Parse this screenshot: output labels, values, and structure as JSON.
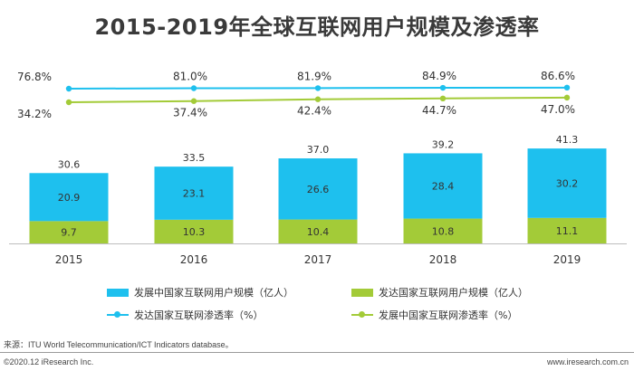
{
  "chart_data": {
    "type": "bar",
    "title": "2015-2019年全球互联网用户规模及渗透率",
    "categories": [
      "2015",
      "2016",
      "2017",
      "2018",
      "2019"
    ],
    "stack_totals": [
      "30.6",
      "33.5",
      "37.0",
      "39.2",
      "41.3"
    ],
    "series": [
      {
        "name": "发展中国家互联网用户规模（亿人）",
        "kind": "bar",
        "color": "#1ec0ee",
        "values": [
          20.9,
          23.1,
          26.6,
          28.4,
          30.2
        ],
        "labels": [
          "20.9",
          "23.1",
          "26.6",
          "28.4",
          "30.2"
        ]
      },
      {
        "name": "发达国家互联网用户规模（亿人）",
        "kind": "bar",
        "color": "#a3cb38",
        "values": [
          9.7,
          10.3,
          10.4,
          10.8,
          11.1
        ],
        "labels": [
          "9.7",
          "10.3",
          "10.4",
          "10.8",
          "11.1"
        ]
      },
      {
        "name": "发达国家互联网渗透率（%）",
        "kind": "line",
        "color": "#1ec0ee",
        "values": [
          76.8,
          81.0,
          81.9,
          84.9,
          86.6
        ],
        "labels": [
          "76.8%",
          "81.0%",
          "81.9%",
          "84.9%",
          "86.6%"
        ]
      },
      {
        "name": "发展中国家互联网渗透率（%）",
        "kind": "line",
        "color": "#a3cb38",
        "values": [
          34.2,
          37.4,
          42.4,
          44.7,
          47.0
        ],
        "labels": [
          "34.2%",
          "37.4%",
          "42.4%",
          "44.7%",
          "47.0%"
        ]
      }
    ],
    "bar_ylim": [
      0,
      45
    ],
    "grid": false,
    "legend_position": "bottom"
  },
  "footer": {
    "source": "来源：ITU World Telecommunication/ICT Indicators database。",
    "copyright": "©2020.12 iResearch Inc.",
    "website": "www.iresearch.com.cn"
  }
}
